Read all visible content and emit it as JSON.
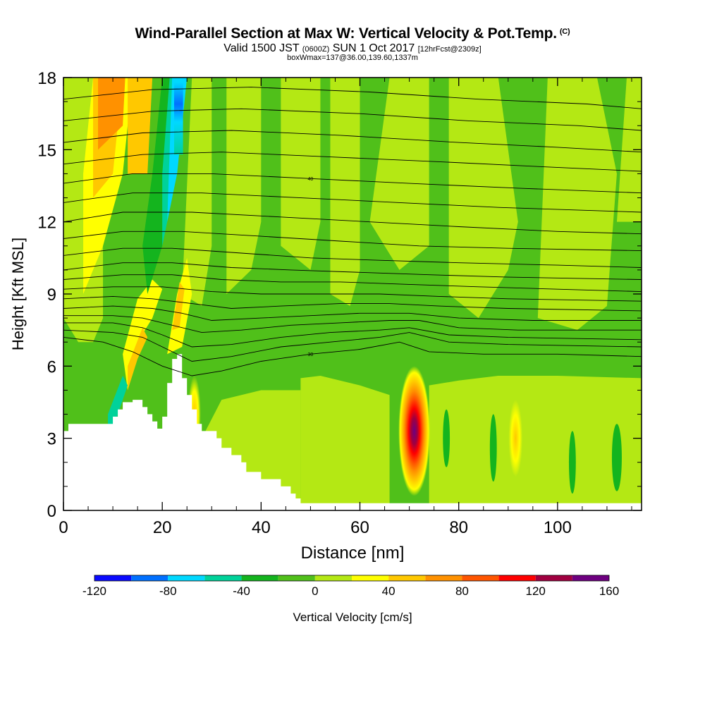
{
  "title": {
    "main": "Wind-Parallel Section at Max W: Vertical Velocity & Pot.Temp.",
    "copyright": "(C)",
    "valid_prefix": "Valid 1500 JST",
    "valid_utc": "(0600Z)",
    "valid_date": "SUN 1 Oct 2017",
    "forecast": "[12hrFcst@2309z]",
    "box_info": "boxWmax=137@36.00,139.60,1337m"
  },
  "chart_data": {
    "type": "heatmap",
    "xlabel": "Distance [nm]",
    "ylabel": "Height [Kft MSL]",
    "xlim": [
      0,
      117
    ],
    "ylim": [
      0,
      18
    ],
    "x_ticks": [
      0,
      20,
      40,
      60,
      80,
      100
    ],
    "y_ticks": [
      0,
      3,
      6,
      9,
      12,
      15,
      18
    ],
    "colorbar": {
      "label": "Vertical Velocity [cm/s]",
      "tick_labels": [
        -120,
        -80,
        -40,
        0,
        40,
        80,
        120,
        160
      ],
      "levels": [
        -120,
        -100,
        -80,
        -60,
        -40,
        -20,
        0,
        20,
        40,
        60,
        80,
        100,
        120,
        140,
        160
      ],
      "colors": [
        "#0a0aff",
        "#0070ff",
        "#00d8ff",
        "#00d29a",
        "#14b41e",
        "#50c01a",
        "#b4e814",
        "#ffff00",
        "#ffc800",
        "#ff9100",
        "#ff5500",
        "#ff0000",
        "#a00040",
        "#6e0080"
      ]
    },
    "terrain_profile_kft": [
      [
        0,
        3.3
      ],
      [
        1,
        3.6
      ],
      [
        5,
        3.6
      ],
      [
        9,
        3.6
      ],
      [
        10,
        3.9
      ],
      [
        11,
        4.2
      ],
      [
        12,
        4.5
      ],
      [
        14,
        4.6
      ],
      [
        16,
        4.3
      ],
      [
        17,
        4.0
      ],
      [
        18,
        3.7
      ],
      [
        19,
        3.4
      ],
      [
        20,
        3.9
      ],
      [
        21,
        5.3
      ],
      [
        22,
        6.3
      ],
      [
        23,
        6.5
      ],
      [
        24,
        5.5
      ],
      [
        25,
        4.8
      ],
      [
        26,
        4.2
      ],
      [
        27,
        3.6
      ],
      [
        28,
        3.3
      ],
      [
        30,
        3.3
      ],
      [
        31,
        3.0
      ],
      [
        32,
        2.6
      ],
      [
        33,
        2.6
      ],
      [
        34,
        2.3
      ],
      [
        36,
        2.0
      ],
      [
        37,
        1.6
      ],
      [
        39,
        1.6
      ],
      [
        40,
        1.3
      ],
      [
        43,
        1.3
      ],
      [
        44,
        1.0
      ],
      [
        46,
        0.7
      ],
      [
        47,
        0.5
      ],
      [
        48,
        0.3
      ],
      [
        50,
        0.3
      ],
      [
        117,
        0.3
      ]
    ],
    "updraft_core": {
      "x": 71,
      "z": 3.3,
      "max_cm_s": 137
    },
    "theta_contours": [
      {
        "label": "30",
        "points": [
          [
            0,
            7.2
          ],
          [
            8,
            7.0
          ],
          [
            14,
            6.6
          ],
          [
            20,
            6.0
          ],
          [
            26,
            5.6
          ],
          [
            32,
            5.8
          ],
          [
            40,
            6.2
          ],
          [
            50,
            6.5
          ],
          [
            60,
            6.7
          ],
          [
            68,
            7.0
          ],
          [
            74,
            6.6
          ],
          [
            85,
            6.5
          ],
          [
            100,
            6.5
          ],
          [
            117,
            6.4
          ]
        ]
      },
      {
        "label": "",
        "points": [
          [
            0,
            7.5
          ],
          [
            10,
            7.4
          ],
          [
            16,
            7.2
          ],
          [
            20,
            6.8
          ],
          [
            26,
            6.2
          ],
          [
            34,
            6.4
          ],
          [
            44,
            6.8
          ],
          [
            54,
            7.0
          ],
          [
            64,
            7.2
          ],
          [
            70,
            7.4
          ],
          [
            78,
            7.0
          ],
          [
            90,
            6.9
          ],
          [
            117,
            6.8
          ]
        ]
      },
      {
        "label": "",
        "points": [
          [
            0,
            7.8
          ],
          [
            10,
            7.8
          ],
          [
            16,
            7.6
          ],
          [
            20,
            7.3
          ],
          [
            26,
            6.8
          ],
          [
            34,
            6.9
          ],
          [
            44,
            7.2
          ],
          [
            54,
            7.4
          ],
          [
            64,
            7.5
          ],
          [
            70,
            7.6
          ],
          [
            78,
            7.3
          ],
          [
            90,
            7.2
          ],
          [
            117,
            7.1
          ]
        ]
      },
      {
        "label": "",
        "points": [
          [
            0,
            8.1
          ],
          [
            10,
            8.1
          ],
          [
            16,
            8.0
          ],
          [
            22,
            7.7
          ],
          [
            28,
            7.4
          ],
          [
            36,
            7.5
          ],
          [
            46,
            7.7
          ],
          [
            56,
            7.8
          ],
          [
            66,
            7.9
          ],
          [
            72,
            7.9
          ],
          [
            80,
            7.6
          ],
          [
            92,
            7.5
          ],
          [
            117,
            7.5
          ]
        ]
      },
      {
        "label": "",
        "points": [
          [
            0,
            8.4
          ],
          [
            10,
            8.5
          ],
          [
            18,
            8.4
          ],
          [
            24,
            8.2
          ],
          [
            30,
            7.9
          ],
          [
            40,
            8.0
          ],
          [
            50,
            8.1
          ],
          [
            60,
            8.2
          ],
          [
            70,
            8.2
          ],
          [
            80,
            8.0
          ],
          [
            95,
            7.9
          ],
          [
            117,
            7.9
          ]
        ]
      },
      {
        "label": "",
        "points": [
          [
            0,
            8.8
          ],
          [
            10,
            8.9
          ],
          [
            18,
            8.8
          ],
          [
            26,
            8.6
          ],
          [
            34,
            8.4
          ],
          [
            44,
            8.5
          ],
          [
            56,
            8.6
          ],
          [
            66,
            8.6
          ],
          [
            76,
            8.5
          ],
          [
            90,
            8.4
          ],
          [
            117,
            8.3
          ]
        ]
      },
      {
        "label": "",
        "points": [
          [
            0,
            9.2
          ],
          [
            10,
            9.3
          ],
          [
            20,
            9.3
          ],
          [
            30,
            9.1
          ],
          [
            40,
            9.0
          ],
          [
            52,
            9.0
          ],
          [
            64,
            9.0
          ],
          [
            76,
            8.9
          ],
          [
            90,
            8.8
          ],
          [
            117,
            8.7
          ]
        ]
      },
      {
        "label": "",
        "points": [
          [
            0,
            9.6
          ],
          [
            12,
            9.8
          ],
          [
            22,
            9.8
          ],
          [
            32,
            9.6
          ],
          [
            44,
            9.5
          ],
          [
            56,
            9.5
          ],
          [
            70,
            9.4
          ],
          [
            84,
            9.3
          ],
          [
            100,
            9.2
          ],
          [
            117,
            9.1
          ]
        ]
      },
      {
        "label": "",
        "points": [
          [
            0,
            10.0
          ],
          [
            12,
            10.3
          ],
          [
            22,
            10.3
          ],
          [
            34,
            10.1
          ],
          [
            46,
            10.0
          ],
          [
            60,
            9.9
          ],
          [
            74,
            9.8
          ],
          [
            90,
            9.7
          ],
          [
            117,
            9.6
          ]
        ]
      },
      {
        "label": "",
        "points": [
          [
            0,
            10.6
          ],
          [
            12,
            10.9
          ],
          [
            22,
            10.9
          ],
          [
            36,
            10.7
          ],
          [
            50,
            10.5
          ],
          [
            64,
            10.4
          ],
          [
            80,
            10.3
          ],
          [
            100,
            10.2
          ],
          [
            117,
            10.1
          ]
        ]
      },
      {
        "label": "",
        "points": [
          [
            0,
            11.3
          ],
          [
            12,
            11.6
          ],
          [
            24,
            11.6
          ],
          [
            40,
            11.4
          ],
          [
            56,
            11.2
          ],
          [
            72,
            11.0
          ],
          [
            90,
            10.9
          ],
          [
            117,
            10.8
          ]
        ]
      },
      {
        "label": "",
        "points": [
          [
            0,
            12.0
          ],
          [
            12,
            12.4
          ],
          [
            26,
            12.4
          ],
          [
            44,
            12.2
          ],
          [
            62,
            12.0
          ],
          [
            80,
            11.8
          ],
          [
            100,
            11.6
          ],
          [
            117,
            11.5
          ]
        ]
      },
      {
        "label": "",
        "points": [
          [
            0,
            12.8
          ],
          [
            14,
            13.2
          ],
          [
            28,
            13.2
          ],
          [
            48,
            13.0
          ],
          [
            68,
            12.8
          ],
          [
            88,
            12.6
          ],
          [
            117,
            12.4
          ]
        ]
      },
      {
        "label": "40",
        "points": [
          [
            0,
            13.6
          ],
          [
            14,
            14.0
          ],
          [
            30,
            14.0
          ],
          [
            50,
            13.8
          ],
          [
            70,
            13.6
          ],
          [
            92,
            13.4
          ],
          [
            117,
            13.2
          ]
        ]
      },
      {
        "label": "",
        "points": [
          [
            0,
            14.4
          ],
          [
            16,
            14.8
          ],
          [
            32,
            14.9
          ],
          [
            54,
            14.7
          ],
          [
            76,
            14.5
          ],
          [
            96,
            14.3
          ],
          [
            117,
            14.1
          ]
        ]
      },
      {
        "label": "",
        "points": [
          [
            0,
            15.3
          ],
          [
            16,
            15.7
          ],
          [
            34,
            15.8
          ],
          [
            56,
            15.6
          ],
          [
            80,
            15.3
          ],
          [
            100,
            15.1
          ],
          [
            117,
            14.9
          ]
        ]
      },
      {
        "label": "",
        "points": [
          [
            0,
            16.2
          ],
          [
            18,
            16.6
          ],
          [
            36,
            16.7
          ],
          [
            60,
            16.5
          ],
          [
            82,
            16.2
          ],
          [
            104,
            16.0
          ],
          [
            117,
            15.8
          ]
        ]
      },
      {
        "label": "",
        "points": [
          [
            0,
            17.1
          ],
          [
            18,
            17.5
          ],
          [
            38,
            17.6
          ],
          [
            62,
            17.4
          ],
          [
            84,
            17.1
          ],
          [
            106,
            16.9
          ],
          [
            117,
            16.7
          ]
        ]
      }
    ]
  }
}
